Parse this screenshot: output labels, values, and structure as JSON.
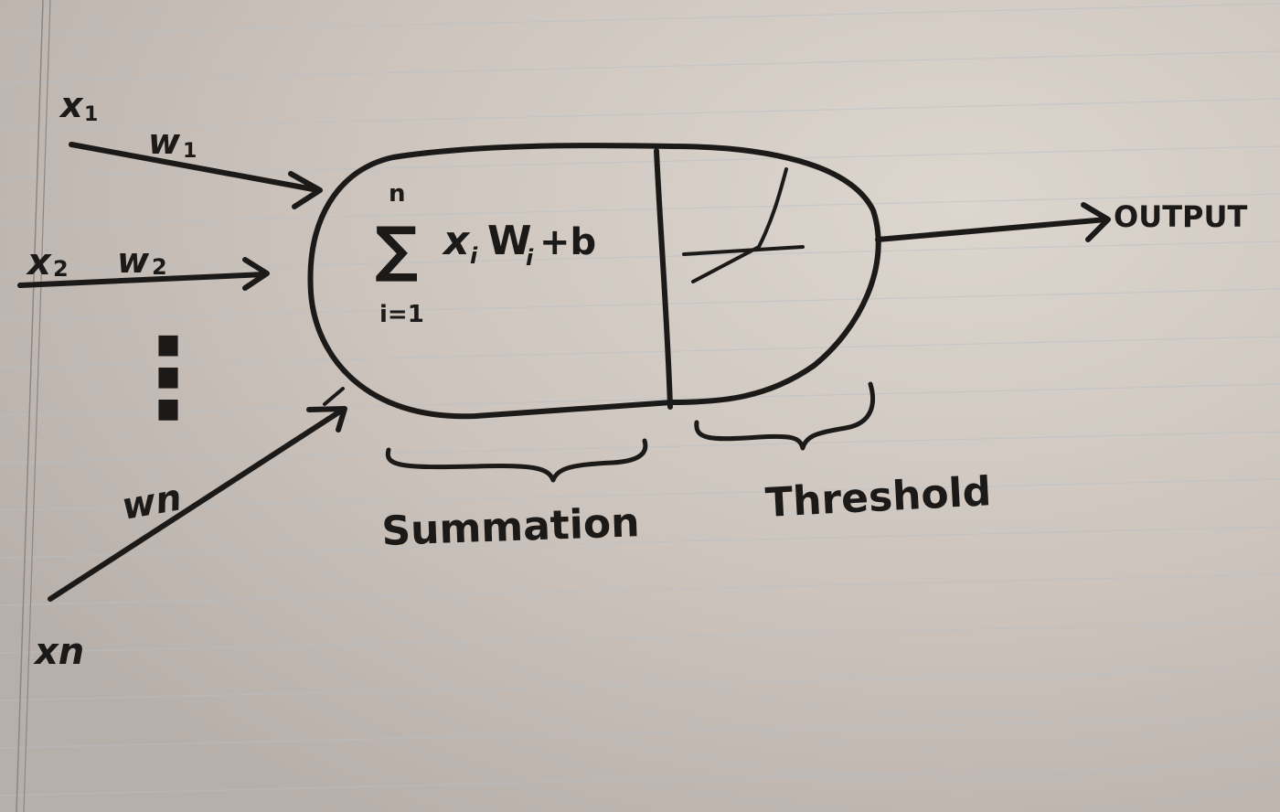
{
  "inputs": {
    "x1": "x",
    "x1_sub": "1",
    "w1": "w",
    "w1_sub": "1",
    "x2": "x",
    "x2_sub": "2",
    "w2": "w",
    "w2_sub": "2",
    "ellipsis": "⋮",
    "wn": "wn",
    "xn": "xn"
  },
  "neuron": {
    "sum_upper": "n",
    "sum_symbol": "∑",
    "sum_lower": "i=1",
    "formula_x": "x",
    "formula_x_sub": "i",
    "formula_w": "W",
    "formula_w_sub": "i",
    "formula_rest": "+b"
  },
  "labels": {
    "summation": "Summation",
    "threshold": "Threshold",
    "output": "OUTPUT"
  },
  "colors": {
    "paper": "#cfc8c2",
    "ink": "#1c1a19",
    "rule_line": "#b9c0c8",
    "margin_line": "#8c8785"
  }
}
